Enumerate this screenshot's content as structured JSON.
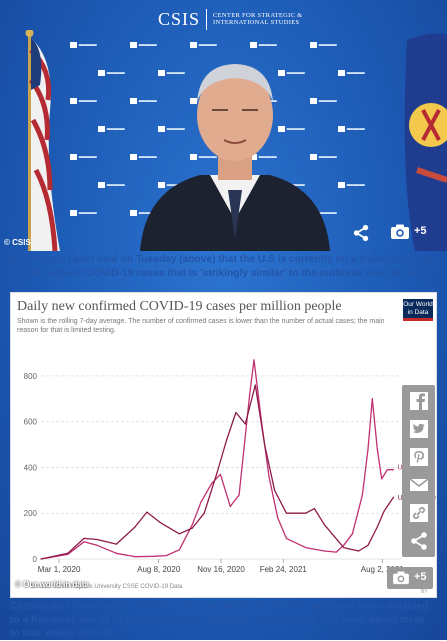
{
  "photo": {
    "logo_main": "CSIS",
    "logo_sub_line1": "CENTER FOR STRATEGIC &",
    "logo_sub_line2": "INTERNATIONAL STUDIES",
    "copyright": "© CSIS",
    "image_count": "+5",
    "colors": {
      "backdrop": "#1d5bb5"
    }
  },
  "caption_top": "Dr Anthony Fauci said on Tuesday (above) that the U.S is currently on a trajectory in its recent surge of COVID-19 cases that is 'strikingly similar' to the outbreak seen in the UK",
  "chart": {
    "copyright": "© Our world in data",
    "image_count": "+5",
    "cc_label": "CC BY"
  },
  "caption_bottom": "Coronavirus infections in Britain peaked at 54,000 in mid-July and have since declined to a five-week low of 21,691 recorded on Tuesday, while the U.S. has been about three to four weeks behind",
  "share_rail": {
    "buttons": [
      "facebook-icon",
      "twitter-icon",
      "pinterest-icon",
      "email-icon",
      "link-icon",
      "share-icon"
    ]
  },
  "chart_data": {
    "type": "line",
    "title": "Daily new confirmed COVID-19 cases per million people",
    "subtitle": "Shown is the rolling 7-day average. The number of confirmed cases is lower than the number of actual cases; the main reason for that is limited testing.",
    "logo_line1": "Our World",
    "logo_line2": "in Data",
    "source": "Source: Johns Hopkins University CSSE COVID-19 Data",
    "xlabel": "",
    "ylabel": "",
    "ylim": [
      0,
      900
    ],
    "y_ticks": [
      "0",
      "200",
      "400",
      "600",
      "800"
    ],
    "y_tick_values": [
      0,
      200,
      400,
      600,
      800
    ],
    "x_ticks": [
      "Mar 1, 2020",
      "Aug 8, 2020",
      "Nov 16, 2020",
      "Feb 24, 2021",
      "Aug 2, 2021"
    ],
    "x_tick_values": [
      "2020-03-01",
      "2020-08-08",
      "2020-11-16",
      "2021-02-24",
      "2021-08-02"
    ],
    "xlim": [
      "2020-02-01",
      "2021-09-01"
    ],
    "grid": true,
    "colors": {
      "uk": "#c0306f",
      "us": "#8e1b4a"
    },
    "series": [
      {
        "name": "United Kingdom",
        "label": "United King",
        "x": [
          "2020-02-01",
          "2020-03-15",
          "2020-04-10",
          "2020-05-01",
          "2020-06-01",
          "2020-07-01",
          "2020-08-01",
          "2020-08-20",
          "2020-09-10",
          "2020-10-01",
          "2020-10-15",
          "2020-11-01",
          "2020-11-15",
          "2020-12-01",
          "2020-12-15",
          "2021-01-01",
          "2021-01-08",
          "2021-01-20",
          "2021-02-01",
          "2021-02-15",
          "2021-03-01",
          "2021-04-01",
          "2021-05-01",
          "2021-05-20",
          "2021-06-01",
          "2021-06-15",
          "2021-07-01",
          "2021-07-10",
          "2021-07-17",
          "2021-07-25",
          "2021-08-01",
          "2021-08-10",
          "2021-08-20"
        ],
        "y": [
          0,
          20,
          75,
          60,
          25,
          10,
          12,
          15,
          40,
          150,
          250,
          330,
          370,
          230,
          280,
          720,
          870,
          600,
          360,
          180,
          90,
          50,
          35,
          30,
          60,
          110,
          280,
          480,
          700,
          480,
          350,
          390,
          390
        ]
      },
      {
        "name": "United States",
        "label": "United State",
        "x": [
          "2020-02-01",
          "2020-03-15",
          "2020-04-10",
          "2020-05-01",
          "2020-06-01",
          "2020-07-01",
          "2020-07-20",
          "2020-08-10",
          "2020-09-10",
          "2020-10-01",
          "2020-10-20",
          "2020-11-10",
          "2020-11-25",
          "2020-12-10",
          "2020-12-25",
          "2021-01-10",
          "2021-01-25",
          "2021-02-10",
          "2021-03-01",
          "2021-04-01",
          "2021-04-15",
          "2021-05-01",
          "2021-06-01",
          "2021-06-25",
          "2021-07-10",
          "2021-07-25",
          "2021-08-05",
          "2021-08-20"
        ],
        "y": [
          0,
          25,
          90,
          85,
          65,
          140,
          205,
          160,
          110,
          135,
          200,
          380,
          520,
          640,
          590,
          760,
          500,
          300,
          200,
          200,
          220,
          150,
          50,
          35,
          60,
          140,
          210,
          270
        ]
      }
    ]
  }
}
